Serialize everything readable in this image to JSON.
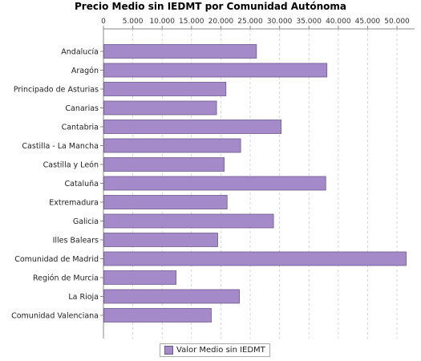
{
  "chart_data": {
    "type": "bar",
    "orientation": "horizontal",
    "title": "Precio Medio sin IEDMT por Comunidad Autónoma",
    "categories": [
      "Andalucía",
      "Aragón",
      "Principado de Asturias",
      "Canarias",
      "Cantabria",
      "Castilla - La Mancha",
      "Castilla y León",
      "Cataluña",
      "Extremadura",
      "Galicia",
      "Illes Balears",
      "Comunidad de Madrid",
      "Región de Murcia",
      "La Rioja",
      "Comunidad Valenciana"
    ],
    "series": [
      {
        "name": "Valor Medio sin IEDMT",
        "color": "#a58ac9",
        "values": [
          26000,
          38000,
          20800,
          19200,
          30200,
          23300,
          20500,
          37800,
          21000,
          28900,
          19400,
          51500,
          12300,
          23100,
          18300
        ]
      }
    ],
    "xaxis_ticks": [
      "0",
      "5.000",
      "10.000",
      "15.000",
      "20.000",
      "25.000",
      "30.000",
      "35.000",
      "40.000",
      "45.000",
      "50.000"
    ],
    "xlim": [
      0,
      53000
    ],
    "xaxis_position": "top",
    "grid": "vertical dashed",
    "legend_position": "bottom-center"
  }
}
